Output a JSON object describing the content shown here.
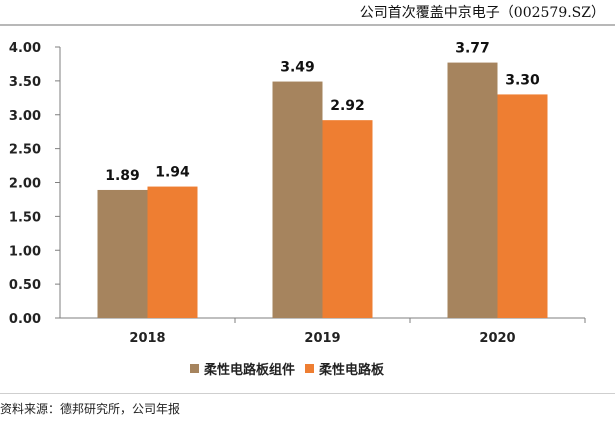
{
  "header": {
    "title": "公司首次覆盖中京电子（002579.SZ）"
  },
  "chart_data": {
    "type": "bar",
    "categories": [
      "2018",
      "2019",
      "2020"
    ],
    "series": [
      {
        "name": "柔性电路板组件",
        "values": [
          1.89,
          3.49,
          3.77
        ],
        "color": "#a6845e",
        "labels": [
          "1.89",
          "3.49",
          "3.77"
        ]
      },
      {
        "name": "柔性电路板",
        "values": [
          1.94,
          2.92,
          3.3
        ],
        "color": "#ee7e32",
        "labels": [
          "1.94",
          "2.92",
          "3.30"
        ]
      }
    ],
    "y_ticks": [
      "0.00",
      "0.50",
      "1.00",
      "1.50",
      "2.00",
      "2.50",
      "3.00",
      "3.50",
      "4.00"
    ],
    "ylim": [
      0,
      4
    ],
    "grid": false,
    "legend_position": "bottom"
  },
  "footer": {
    "source": "资料来源：德邦研究所，公司年报"
  }
}
